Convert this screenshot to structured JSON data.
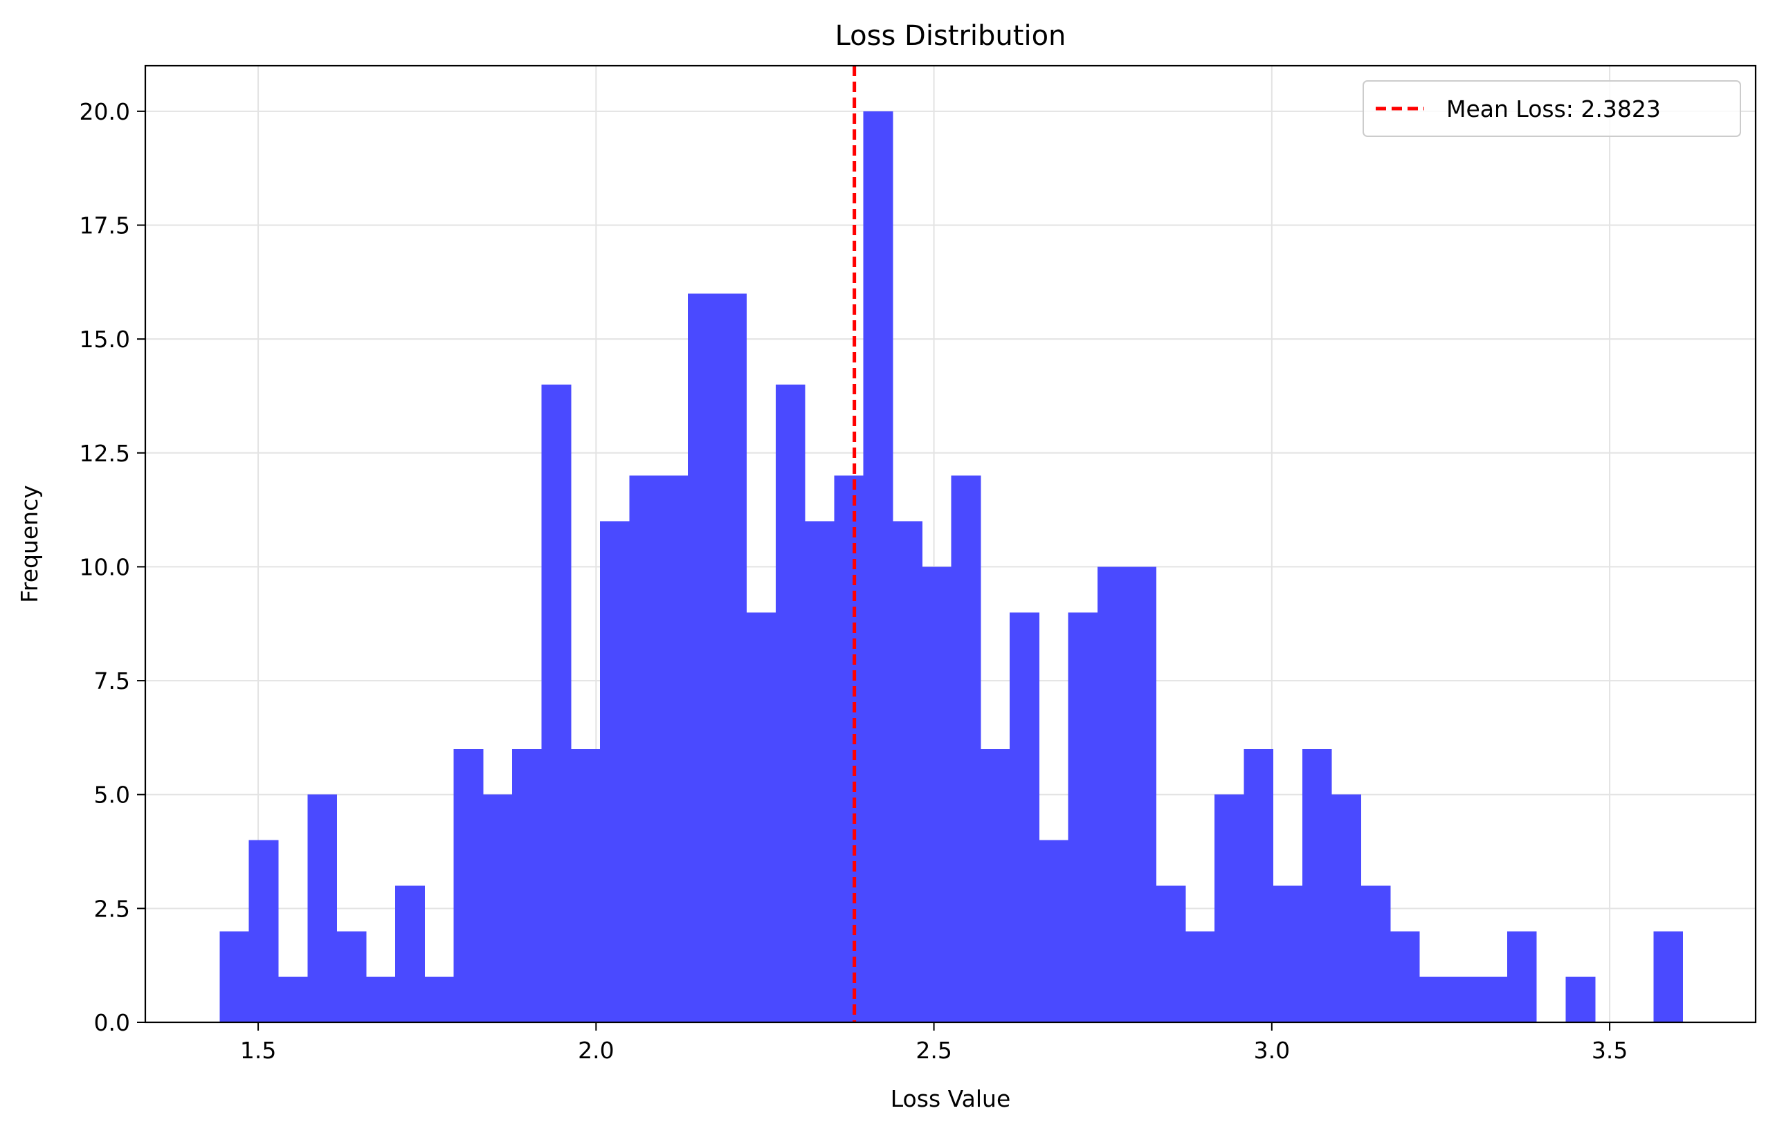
{
  "chart_data": {
    "type": "bar",
    "title": "Loss Distribution",
    "xlabel": "Loss Value",
    "ylabel": "Frequency",
    "xlim": [
      1.333,
      3.716
    ],
    "ylim": [
      0,
      21
    ],
    "bin_start": 1.443,
    "bin_width": 0.0433,
    "values": [
      2,
      4,
      1,
      5,
      2,
      1,
      3,
      1,
      6,
      5,
      6,
      14,
      6,
      11,
      12,
      12,
      16,
      16,
      9,
      14,
      11,
      12,
      20,
      11,
      10,
      12,
      6,
      9,
      4,
      9,
      10,
      10,
      3,
      2,
      5,
      6,
      3,
      6,
      5,
      3,
      2,
      1,
      1,
      1,
      2,
      0,
      1,
      0,
      0,
      2
    ],
    "x_ticks": [
      1.5,
      2.0,
      2.5,
      3.0,
      3.5
    ],
    "x_tick_labels": [
      "1.5",
      "2.0",
      "2.5",
      "3.0",
      "3.5"
    ],
    "y_ticks": [
      0,
      2.5,
      5,
      7.5,
      10,
      12.5,
      15,
      17.5,
      20
    ],
    "y_tick_labels": [
      "0.0",
      "2.5",
      "5.0",
      "7.5",
      "10.0",
      "12.5",
      "15.0",
      "17.5",
      "20.0"
    ],
    "grid": true,
    "mean_line": {
      "value": 2.3823,
      "label": "Mean Loss: 2.3823",
      "color": "#ff0000",
      "style": "dashed"
    },
    "legend_position": "top-right",
    "colors": {
      "bars": "#4a4aff",
      "mean_line": "#ff0000",
      "grid": "#e3e3e3",
      "axes": "#000000"
    }
  }
}
